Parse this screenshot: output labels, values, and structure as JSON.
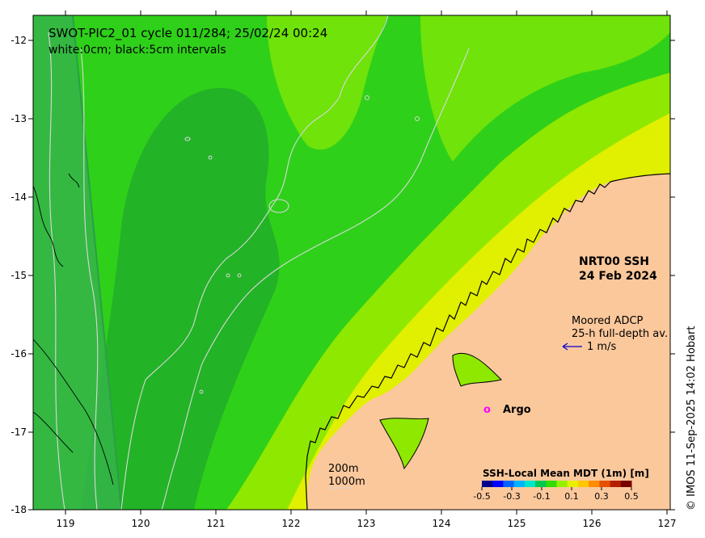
{
  "title": {
    "line1": "SWOT-PIC2_01 cycle 011/284; 25/02/24 00:24",
    "line2": "white:0cm; black:5cm intervals"
  },
  "axes": {
    "x_ticks": [
      "119",
      "120",
      "121",
      "122",
      "123",
      "124",
      "125",
      "126",
      "127"
    ],
    "y_ticks": [
      "-12",
      "-13",
      "-14",
      "-15",
      "-16",
      "-17",
      "-18"
    ]
  },
  "ssh_label": {
    "line1": "NRT00 SSH",
    "line2": "24 Feb 2024"
  },
  "adcp": {
    "line1": "Moored ADCP",
    "line2": "25-h full-depth av.",
    "scale": "1 m/s"
  },
  "argo": {
    "marker": "o",
    "label": "Argo",
    "color": "#ff00ff"
  },
  "isobaths": {
    "line1": "200m",
    "line2": "1000m"
  },
  "colorbar": {
    "title": "SSH-Local Mean MDT (1m) [m]",
    "ticks": [
      "-0.5",
      "-0.3",
      "-0.1",
      "0.1",
      "0.3",
      "0.5"
    ],
    "colors": [
      "#00008b",
      "#0000ff",
      "#0064ff",
      "#00b4ff",
      "#00e6c8",
      "#00c850",
      "#32dc00",
      "#96f000",
      "#e6f000",
      "#ffc800",
      "#ff8c00",
      "#e65000",
      "#b41e00",
      "#7a0000"
    ]
  },
  "credit": "© IMOS 11-Sep-2025 14:02 Hobart",
  "colors": {
    "land": "#fbc89c",
    "ocean_dark": "#1ea01e",
    "ocean_mid": "#2dc81e",
    "ocean_light": "#4be60f",
    "ocean_yellowgreen": "#a0f000",
    "ocean_yellow": "#e6f000",
    "swath": "#3cb450"
  }
}
